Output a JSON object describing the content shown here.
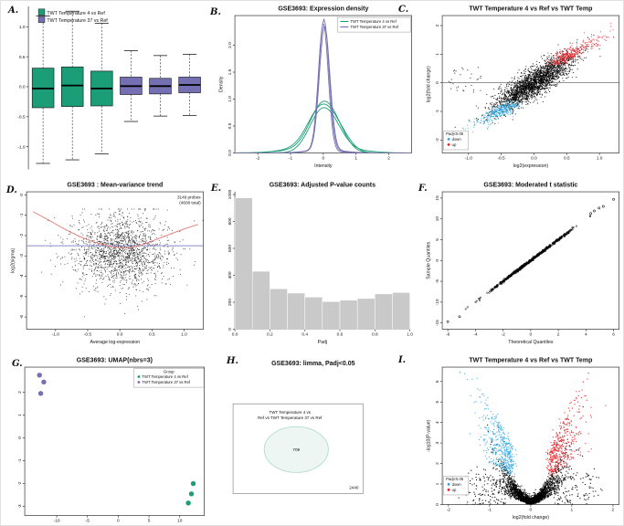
{
  "figure": {
    "accession_titles_note": "multi-panel GEO2R differential expression figure",
    "background": "#ffffff"
  },
  "colors": {
    "group1_green": "#1B9E77",
    "group2_purple": "#7570B3",
    "up_red": "#E8232A",
    "down_blue": "#33A8E0",
    "trend_red": "#DD7A72",
    "reference_blue": "#8A8CCB",
    "hist_gray": "#C9C9C9"
  },
  "chart_data": [
    {
      "panel": "A",
      "panel_letter": "A.",
      "type": "boxplot",
      "title": "",
      "ylim": [
        -1.38,
        1.34
      ],
      "yticks": [
        {
          "v": 1.0,
          "l": "1.0"
        },
        {
          "v": 0.5,
          "l": "0.5"
        },
        {
          "v": 0.0,
          "l": "0.0"
        },
        {
          "v": -0.5,
          "l": "-0.5"
        },
        {
          "v": -1.0,
          "l": "-1.0"
        }
      ],
      "legend": {
        "items": [
          {
            "label": "TWT Temperature 4 vs Ref",
            "color": "#1B9E77"
          },
          {
            "label": "TWT Temperature 37 vs Ref",
            "color": "#7570B3"
          }
        ]
      },
      "boxes": [
        {
          "group": "TWT Temperature 4 vs Ref",
          "color": "#1B9E77",
          "low": -1.28,
          "q1": -0.35,
          "median": -0.03,
          "q3": 0.31,
          "high": 1.18
        },
        {
          "group": "TWT Temperature 4 vs Ref",
          "color": "#1B9E77",
          "low": -1.22,
          "q1": -0.33,
          "median": 0.02,
          "q3": 0.33,
          "high": 1.26
        },
        {
          "group": "TWT Temperature 4 vs Ref",
          "color": "#1B9E77",
          "low": -1.12,
          "q1": -0.32,
          "median": -0.03,
          "q3": 0.26,
          "high": 1.06
        },
        {
          "group": "TWT Temperature 37 vs Ref",
          "color": "#7570B3",
          "low": -0.58,
          "q1": -0.13,
          "median": 0.01,
          "q3": 0.16,
          "high": 0.6
        },
        {
          "group": "TWT Temperature 37 vs Ref",
          "color": "#7570B3",
          "low": -0.49,
          "q1": -0.12,
          "median": 0.01,
          "q3": 0.14,
          "high": 0.52
        },
        {
          "group": "TWT Temperature 37 vs Ref",
          "color": "#7570B3",
          "low": -0.48,
          "q1": -0.1,
          "median": 0.03,
          "q3": 0.16,
          "high": 0.54
        }
      ]
    },
    {
      "panel": "B",
      "panel_letter": "B.",
      "type": "density",
      "title": "GSE3693: Expression density",
      "xlabel": "Intensity",
      "ylabel": "Density",
      "xlim": [
        -2.7,
        2.7
      ],
      "xticks": [
        {
          "v": -2,
          "l": "-2"
        },
        {
          "v": -1,
          "l": "-1"
        },
        {
          "v": 0,
          "l": "0"
        },
        {
          "v": 1,
          "l": "1"
        },
        {
          "v": 2,
          "l": "2"
        }
      ],
      "ylim": [
        0,
        2.55
      ],
      "yticks": [
        {
          "v": 0,
          "l": "0.0"
        },
        {
          "v": 0.5,
          "l": "0.5"
        },
        {
          "v": 1,
          "l": "1.0"
        },
        {
          "v": 1.5,
          "l": "1.5"
        },
        {
          "v": 2,
          "l": "2.0"
        }
      ],
      "legend": {
        "items": [
          {
            "label": "TWT Temperature 4 vs Ref",
            "color": "#1B9E77"
          },
          {
            "label": "TWT Temperature 37 vs Ref",
            "color": "#7570B3"
          }
        ]
      },
      "curves": [
        {
          "color": "#1B9E77",
          "components": [
            {
              "mu": 0,
              "sd": 0.45,
              "peak": 0.88
            },
            {
              "mu": 0.62,
              "sd": 0.3,
              "peak": 0.1
            },
            {
              "mu": -0.9,
              "sd": 0.6,
              "peak": 0.05
            }
          ]
        },
        {
          "color": "#1B9E77",
          "components": [
            {
              "mu": 0.03,
              "sd": 0.42,
              "peak": 0.93
            },
            {
              "mu": 0.55,
              "sd": 0.28,
              "peak": 0.07
            },
            {
              "mu": -0.8,
              "sd": 0.6,
              "peak": 0.05
            }
          ]
        },
        {
          "color": "#1B9E77",
          "components": [
            {
              "mu": -0.02,
              "sd": 0.4,
              "peak": 0.8
            },
            {
              "mu": 0.5,
              "sd": 0.32,
              "peak": 0.13
            },
            {
              "mu": 1.1,
              "sd": 0.5,
              "peak": 0.04
            }
          ]
        },
        {
          "color": "#7570B3",
          "components": [
            {
              "mu": 0.02,
              "sd": 0.155,
              "peak": 2.42
            },
            {
              "mu": 0,
              "sd": 0.5,
              "peak": 0.06
            }
          ]
        },
        {
          "color": "#7570B3",
          "components": [
            {
              "mu": 0.04,
              "sd": 0.16,
              "peak": 2.3
            },
            {
              "mu": 0.1,
              "sd": 0.5,
              "peak": 0.06
            }
          ]
        },
        {
          "color": "#7570B3",
          "components": [
            {
              "mu": 0,
              "sd": 0.15,
              "peak": 2.36
            },
            {
              "mu": -0.1,
              "sd": 0.45,
              "peak": 0.05
            }
          ]
        }
      ]
    },
    {
      "panel": "C",
      "panel_letter": "C.",
      "type": "ma",
      "title": "TWT Temperature 4 vs Ref vs TWT Temp",
      "xlabel": "log2(expression)",
      "ylabel": "log2(fold change)",
      "xlim": [
        -1.4,
        1.3
      ],
      "xticks": [
        {
          "v": -1,
          "l": "-1.0"
        },
        {
          "v": -0.5,
          "l": "-0.5"
        },
        {
          "v": 0,
          "l": "0.0"
        },
        {
          "v": 0.5,
          "l": "0.5"
        },
        {
          "v": 1,
          "l": "1.0"
        }
      ],
      "ylim": [
        -2.45,
        2.35
      ],
      "yticks": [
        {
          "v": -2,
          "l": "-2"
        },
        {
          "v": -1,
          "l": "-1"
        },
        {
          "v": 0,
          "l": "0"
        },
        {
          "v": 1,
          "l": "1"
        },
        {
          "v": 2,
          "l": "2"
        }
      ],
      "hline": 0,
      "legend": {
        "title": "Padj<0.05",
        "items": [
          {
            "label": "down",
            "color": "#33A8E0"
          },
          {
            "label": "up",
            "color": "#E8232A"
          }
        ]
      },
      "cloud": {
        "seed": 7,
        "n_background": 2400,
        "n_down": 380,
        "n_up": 380
      }
    },
    {
      "panel": "D",
      "panel_letter": "D.",
      "type": "mv",
      "title": "GSE3693 : Mean-variance trend",
      "xlabel": "Average log-expression",
      "ylabel": "log2(sigma)",
      "xlim": [
        -1.45,
        1.3
      ],
      "xticks": [
        {
          "v": -1,
          "l": "-1.0"
        },
        {
          "v": -0.5,
          "l": "-0.5"
        },
        {
          "v": 0,
          "l": "0.0"
        },
        {
          "v": 0.5,
          "l": "0.5"
        },
        {
          "v": 1,
          "l": "1.0"
        }
      ],
      "ylim": [
        -6.6,
        0.15
      ],
      "yticks": [
        {
          "v": 0,
          "l": "0"
        },
        {
          "v": -1,
          "l": "-1"
        },
        {
          "v": -2,
          "l": "-2"
        },
        {
          "v": -3,
          "l": "-3"
        },
        {
          "v": -4,
          "l": "-4"
        },
        {
          "v": -5,
          "l": "-5"
        },
        {
          "v": -6,
          "l": "-6"
        }
      ],
      "annotation": [
        "3149 probes",
        "(4608 total)"
      ],
      "hline": -2.5,
      "trend": [
        [
          -1.35,
          -0.82
        ],
        [
          -1.1,
          -1.25
        ],
        [
          -0.85,
          -1.7
        ],
        [
          -0.6,
          -2.08
        ],
        [
          -0.4,
          -2.32
        ],
        [
          -0.2,
          -2.5
        ],
        [
          0,
          -2.6
        ],
        [
          0.15,
          -2.6
        ],
        [
          0.35,
          -2.45
        ],
        [
          0.6,
          -2.15
        ],
        [
          0.85,
          -1.85
        ],
        [
          1.05,
          -1.62
        ],
        [
          1.22,
          -1.45
        ]
      ],
      "cloud": {
        "seed": 11,
        "n": 1750
      }
    },
    {
      "panel": "E",
      "panel_letter": "E.",
      "type": "hist",
      "title": "GSE3693: Adjusted P-value counts",
      "xlabel": "Padj",
      "ylabel": "",
      "xlim": [
        0,
        1
      ],
      "xticks": [
        {
          "v": 0,
          "l": "0.0"
        },
        {
          "v": 0.2,
          "l": "0.2"
        },
        {
          "v": 0.4,
          "l": "0.4"
        },
        {
          "v": 0.6,
          "l": "0.6"
        },
        {
          "v": 0.8,
          "l": "0.8"
        },
        {
          "v": 1,
          "l": "1.0"
        }
      ],
      "ylim": [
        0,
        1020
      ],
      "yticks": [
        {
          "v": 0,
          "l": "0"
        },
        {
          "v": 200,
          "l": "200"
        },
        {
          "v": 400,
          "l": "400"
        },
        {
          "v": 600,
          "l": "600"
        },
        {
          "v": 800,
          "l": "800"
        },
        {
          "v": 1000,
          "l": "1000"
        }
      ],
      "bin_width": 0.1,
      "counts": [
        975,
        430,
        300,
        268,
        238,
        205,
        215,
        228,
        262,
        272
      ],
      "bar_color": "#C9C9C9"
    },
    {
      "panel": "F",
      "panel_letter": "F.",
      "type": "qq",
      "title": "GSE3693: Moderated t statistic",
      "xlabel": "Theoretical Quantiles",
      "ylabel": "Sample Quantiles",
      "xlim": [
        -6.4,
        6.4
      ],
      "xticks": [
        {
          "v": -6,
          "l": "-6"
        },
        {
          "v": -4,
          "l": "-4"
        },
        {
          "v": -2,
          "l": "-2"
        },
        {
          "v": 0,
          "l": "0"
        },
        {
          "v": 2,
          "l": "2"
        },
        {
          "v": 4,
          "l": "4"
        },
        {
          "v": 6,
          "l": "6"
        }
      ],
      "ylim": [
        -16.5,
        16.5
      ],
      "yticks": [
        {
          "v": -15,
          "l": "-15"
        },
        {
          "v": -10,
          "l": "-10"
        },
        {
          "v": -5,
          "l": "-5"
        },
        {
          "v": 0,
          "l": "0"
        },
        {
          "v": 5,
          "l": "5"
        },
        {
          "v": 10,
          "l": "10"
        },
        {
          "v": 15,
          "l": "15"
        }
      ],
      "slope": 2.5,
      "outliers": [
        [
          -6.0,
          -14.7
        ],
        [
          -5.15,
          -13.5
        ],
        [
          4.35,
          11.3
        ],
        [
          4.6,
          11.9
        ],
        [
          4.95,
          12.6
        ],
        [
          5.25,
          13.0
        ],
        [
          6.0,
          14.7
        ]
      ],
      "cloud": {
        "seed": 3,
        "n": 560
      }
    },
    {
      "panel": "G",
      "panel_letter": "G.",
      "type": "umap",
      "title": "GSE3693: UMAP(nbrs=3)",
      "xlim": [
        -15.2,
        14
      ],
      "xticks": [
        {
          "v": -10,
          "l": "-10"
        },
        {
          "v": -5,
          "l": "-5"
        },
        {
          "v": 0,
          "l": "0"
        },
        {
          "v": 5,
          "l": "5"
        },
        {
          "v": 10,
          "l": "10"
        }
      ],
      "ylim": [
        -3.4,
        3.1
      ],
      "yticks": [
        {
          "v": -3,
          "l": "-3"
        },
        {
          "v": -2,
          "l": "-2"
        },
        {
          "v": -1,
          "l": "-1"
        },
        {
          "v": 0,
          "l": "0"
        },
        {
          "v": 1,
          "l": "1"
        },
        {
          "v": 2,
          "l": "2"
        }
      ],
      "legend_title": "Group",
      "groups": [
        {
          "label": "TWT Temperature 4 vs Ref",
          "color": "#1B9E77",
          "points": [
            [
              12.2,
              -2.0
            ],
            [
              11.9,
              -2.45
            ],
            [
              11.4,
              -2.85
            ]
          ]
        },
        {
          "label": "TWT Temperature 37 vs Ref",
          "color": "#7570B3",
          "points": [
            [
              -12.8,
              2.75
            ],
            [
              -12.1,
              2.45
            ],
            [
              -12.6,
              1.95
            ]
          ]
        }
      ]
    },
    {
      "panel": "H",
      "panel_letter": "H.",
      "type": "venn",
      "title": "GSE3693: limma, Padj<0.05",
      "set_label_lines": [
        "TWT Temperature 4 vs",
        "Ref vs TWT Temperature 37 vs Ref"
      ],
      "inside_count": "709",
      "outside_count": "2440",
      "circle_fill": "#EDF6F2",
      "circle_stroke": "#A9D8CA"
    },
    {
      "panel": "I",
      "panel_letter": "I.",
      "type": "volcano",
      "title": "TWT Temperature 4 vs Ref vs TWT Temp",
      "xlabel": "log2(fold change)",
      "ylabel": "-log10(P-value)",
      "xlim": [
        -2.15,
        2.15
      ],
      "xticks": [
        {
          "v": -2,
          "l": "-2"
        },
        {
          "v": -1,
          "l": "-1"
        },
        {
          "v": 0,
          "l": "0"
        },
        {
          "v": 1,
          "l": "1"
        },
        {
          "v": 2,
          "l": "2"
        }
      ],
      "ylim": [
        0,
        6.7
      ],
      "yticks": [
        {
          "v": 0,
          "l": "0"
        },
        {
          "v": 1,
          "l": "1"
        },
        {
          "v": 2,
          "l": "2"
        },
        {
          "v": 3,
          "l": "3"
        },
        {
          "v": 4,
          "l": "4"
        },
        {
          "v": 5,
          "l": "5"
        },
        {
          "v": 6,
          "l": "6"
        }
      ],
      "legend": {
        "title": "Padj<0.05",
        "items": [
          {
            "label": "down",
            "color": "#33A8E0"
          },
          {
            "label": "up",
            "color": "#E8232A"
          }
        ]
      },
      "cloud": {
        "seed": 5,
        "n_background": 2000,
        "n_down": 430,
        "n_up": 430
      }
    }
  ]
}
